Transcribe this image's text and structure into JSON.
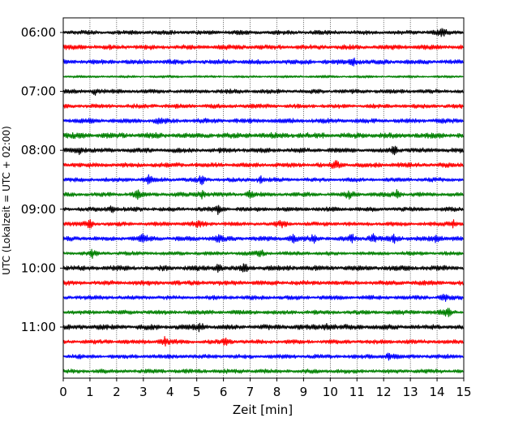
{
  "chart_data": {
    "type": "line",
    "title": "",
    "xlabel": "Zeit  [min]",
    "ylabel": "UTC (Lokalzeit = UTC + 02:00)",
    "xlim": [
      0,
      15
    ],
    "x_ticks": [
      "0",
      "1",
      "2",
      "3",
      "4",
      "5",
      "6",
      "7",
      "8",
      "9",
      "10",
      "11",
      "12",
      "13",
      "14",
      "15"
    ],
    "y_ticks": [
      "06:00",
      "07:00",
      "08:00",
      "09:00",
      "10:00",
      "11:00"
    ],
    "grid": "vertical dotted",
    "row_interval_min": 15,
    "colors": [
      "#000000",
      "#ff0000",
      "#0000ff",
      "#008000"
    ],
    "series": [
      {
        "start": "06:00",
        "color": "#000000",
        "amplitude": 1.0,
        "events": [
          14.2
        ]
      },
      {
        "start": "06:15",
        "color": "#ff0000",
        "amplitude": 1.1,
        "events": []
      },
      {
        "start": "06:30",
        "color": "#0000ff",
        "amplitude": 1.1,
        "events": [
          10.9
        ]
      },
      {
        "start": "06:45",
        "color": "#008000",
        "amplitude": 0.6,
        "events": []
      },
      {
        "start": "07:00",
        "color": "#000000",
        "amplitude": 1.0,
        "events": [
          1.2
        ]
      },
      {
        "start": "07:15",
        "color": "#ff0000",
        "amplitude": 1.0,
        "events": []
      },
      {
        "start": "07:30",
        "color": "#0000ff",
        "amplitude": 1.1,
        "events": [
          3.6
        ]
      },
      {
        "start": "07:45",
        "color": "#008000",
        "amplitude": 1.3,
        "events": []
      },
      {
        "start": "08:00",
        "color": "#000000",
        "amplitude": 1.1,
        "events": [
          0.6,
          12.4
        ]
      },
      {
        "start": "08:15",
        "color": "#ff0000",
        "amplitude": 1.1,
        "events": [
          10.2
        ]
      },
      {
        "start": "08:30",
        "color": "#0000ff",
        "amplitude": 1.0,
        "events": [
          3.2,
          5.2,
          7.4
        ]
      },
      {
        "start": "08:45",
        "color": "#008000",
        "amplitude": 1.0,
        "events": [
          2.8,
          5.2,
          7.0,
          10.7,
          12.5
        ]
      },
      {
        "start": "09:00",
        "color": "#000000",
        "amplitude": 1.0,
        "events": [
          1.8,
          5.8
        ]
      },
      {
        "start": "09:15",
        "color": "#ff0000",
        "amplitude": 1.0,
        "events": [
          1.0,
          5.1,
          8.2,
          14.6
        ]
      },
      {
        "start": "09:30",
        "color": "#0000ff",
        "amplitude": 1.1,
        "events": [
          3.0,
          5.8,
          8.6,
          9.4,
          10.8,
          11.6,
          12.4,
          14.0
        ]
      },
      {
        "start": "09:45",
        "color": "#008000",
        "amplitude": 0.9,
        "events": [
          1.1,
          7.4
        ]
      },
      {
        "start": "10:00",
        "color": "#000000",
        "amplitude": 1.2,
        "events": [
          5.8,
          6.8
        ]
      },
      {
        "start": "10:15",
        "color": "#ff0000",
        "amplitude": 1.1,
        "events": []
      },
      {
        "start": "10:30",
        "color": "#0000ff",
        "amplitude": 1.0,
        "events": [
          14.3
        ]
      },
      {
        "start": "10:45",
        "color": "#008000",
        "amplitude": 1.0,
        "events": [
          14.4
        ]
      },
      {
        "start": "11:00",
        "color": "#000000",
        "amplitude": 1.2,
        "events": [
          5.1,
          9.9
        ]
      },
      {
        "start": "11:15",
        "color": "#ff0000",
        "amplitude": 1.0,
        "events": [
          3.8,
          6.1
        ]
      },
      {
        "start": "11:30",
        "color": "#0000ff",
        "amplitude": 1.0,
        "events": [
          12.2
        ]
      },
      {
        "start": "11:45",
        "color": "#008000",
        "amplitude": 1.0,
        "events": []
      }
    ]
  }
}
